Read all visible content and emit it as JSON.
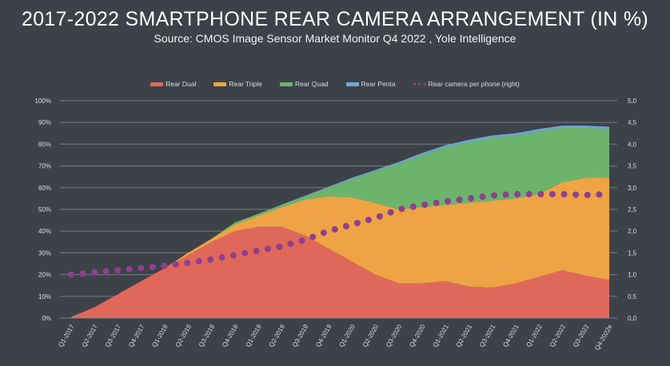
{
  "chart_data": {
    "type": "area",
    "stacked": true,
    "title": "2017-2022 SMARTPHONE REAR CAMERA ARRANGEMENT (IN %)",
    "subtitle": "Source: CMOS Image Sensor Market Monitor Q4 2022 , Yole Intelligence",
    "categories": [
      "Q1-2017",
      "Q2-2017",
      "Q3-2017",
      "Q4-2017",
      "Q1-2018",
      "Q2-2018",
      "Q3-2018",
      "Q4-2018",
      "Q1-2019",
      "Q2-2019",
      "Q3-2019",
      "Q4-2019",
      "Q1-2020",
      "Q2-2020",
      "Q3-2020",
      "Q4-2020",
      "Q1-2021",
      "Q2-2021",
      "Q3-2021",
      "Q4-2021",
      "Q1-2022",
      "Q2-2022",
      "Q3-2022",
      "Q4-2022e"
    ],
    "series": [
      {
        "name": "Rear Dual",
        "color": "#e0685a",
        "axis": "left",
        "values": [
          0.5,
          5,
          11,
          17,
          23,
          29,
          35,
          40,
          42,
          42,
          38,
          32,
          26,
          20,
          16,
          16,
          17,
          14.5,
          14,
          16,
          19,
          22,
          19.5,
          17.5
        ]
      },
      {
        "name": "Rear Triple",
        "color": "#eea445",
        "axis": "left",
        "values": [
          0,
          0,
          0,
          0,
          0,
          1,
          1.5,
          3,
          5,
          9,
          16.5,
          24,
          29.5,
          33,
          34,
          35,
          35,
          38.5,
          40,
          39,
          38,
          40.5,
          45,
          47
        ]
      },
      {
        "name": "Rear Quad",
        "color": "#6cb46c",
        "axis": "left",
        "values": [
          0,
          0,
          0,
          0,
          0,
          0,
          0,
          1,
          1,
          1,
          1.5,
          4,
          8.5,
          14.5,
          21,
          24,
          26.5,
          28,
          29,
          29,
          29,
          25,
          23,
          22.5
        ]
      },
      {
        "name": "Rear Penta",
        "color": "#6ea6dc",
        "axis": "left",
        "values": [
          0,
          0,
          0,
          0,
          0,
          0,
          0,
          0,
          0,
          0.2,
          0.3,
          0.4,
          0.5,
          0.6,
          0.8,
          0.9,
          1,
          1,
          1,
          1,
          1,
          1,
          1,
          1
        ]
      },
      {
        "name": "Rear camera per phone (right)",
        "color": "#8e3f8e",
        "axis": "right",
        "type": "line",
        "style": "dotted",
        "values": [
          1.0,
          1.05,
          1.1,
          1.15,
          1.2,
          1.27,
          1.35,
          1.45,
          1.55,
          1.65,
          1.8,
          2.0,
          2.15,
          2.3,
          2.5,
          2.6,
          2.68,
          2.75,
          2.82,
          2.85,
          2.85,
          2.85,
          2.83,
          2.85
        ]
      }
    ],
    "y_left": {
      "range": [
        0,
        100
      ],
      "ticks": [
        "0%",
        "10%",
        "20%",
        "30%",
        "40%",
        "50%",
        "60%",
        "70%",
        "80%",
        "90%",
        "100%"
      ]
    },
    "y_right": {
      "range": [
        0,
        5
      ],
      "ticks": [
        "0,0",
        "0,5",
        "1,0",
        "1,5",
        "2,0",
        "2,5",
        "3,0",
        "3,5",
        "4,0",
        "4,5",
        "5,0"
      ]
    },
    "grid": true,
    "legend_position": "top"
  }
}
